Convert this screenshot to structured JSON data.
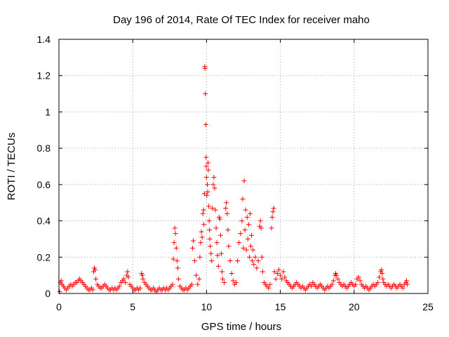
{
  "colors": {
    "background": "#ffffff",
    "series": "#ff0000",
    "grid": "#a0a0a0",
    "axes": "#000000"
  },
  "chart_data": {
    "type": "scatter",
    "title": "Day 196 of 2014, Rate Of TEC Index for receiver maho",
    "xlabel": "GPS time / hours",
    "ylabel": "ROTI / TECUs",
    "xlim": [
      0,
      25
    ],
    "ylim": [
      0,
      1.4
    ],
    "xticks": [
      0,
      5,
      10,
      15,
      20,
      25
    ],
    "yticks": [
      0,
      0.2,
      0.4,
      0.6,
      0.8,
      1,
      1.2,
      1.4
    ],
    "xtick_labels": [
      "0",
      "5",
      "10",
      "15",
      "20",
      "25"
    ],
    "ytick_labels": [
      "0",
      "0.2",
      "0.4",
      "0.6",
      "0.8",
      "1",
      "1.2",
      "1.4"
    ],
    "grid": true,
    "marker": "plus",
    "series": [
      {
        "name": "ROTI",
        "color": "#ff0000",
        "points": [
          [
            0.05,
            0.01
          ],
          [
            0.1,
            0.06
          ],
          [
            0.15,
            0.07
          ],
          [
            0.2,
            0.05
          ],
          [
            0.3,
            0.04
          ],
          [
            0.4,
            0.03
          ],
          [
            0.5,
            0.02
          ],
          [
            0.6,
            0.03
          ],
          [
            0.7,
            0.04
          ],
          [
            0.8,
            0.05
          ],
          [
            0.9,
            0.04
          ],
          [
            1.0,
            0.05
          ],
          [
            1.1,
            0.06
          ],
          [
            1.2,
            0.06
          ],
          [
            1.3,
            0.07
          ],
          [
            1.4,
            0.08
          ],
          [
            1.5,
            0.07
          ],
          [
            1.6,
            0.06
          ],
          [
            1.7,
            0.05
          ],
          [
            1.8,
            0.04
          ],
          [
            1.9,
            0.03
          ],
          [
            2.0,
            0.02
          ],
          [
            2.1,
            0.02
          ],
          [
            2.2,
            0.03
          ],
          [
            2.3,
            0.02
          ],
          [
            2.35,
            0.12
          ],
          [
            2.4,
            0.14
          ],
          [
            2.45,
            0.13
          ],
          [
            2.5,
            0.08
          ],
          [
            2.6,
            0.05
          ],
          [
            2.7,
            0.04
          ],
          [
            2.8,
            0.03
          ],
          [
            2.9,
            0.03
          ],
          [
            3.0,
            0.04
          ],
          [
            3.1,
            0.05
          ],
          [
            3.2,
            0.04
          ],
          [
            3.3,
            0.03
          ],
          [
            3.4,
            0.02
          ],
          [
            3.5,
            0.02
          ],
          [
            3.6,
            0.03
          ],
          [
            3.7,
            0.02
          ],
          [
            3.8,
            0.03
          ],
          [
            3.9,
            0.02
          ],
          [
            4.0,
            0.03
          ],
          [
            4.1,
            0.04
          ],
          [
            4.2,
            0.06
          ],
          [
            4.3,
            0.07
          ],
          [
            4.4,
            0.08
          ],
          [
            4.5,
            0.06
          ],
          [
            4.6,
            0.1
          ],
          [
            4.65,
            0.12
          ],
          [
            4.7,
            0.09
          ],
          [
            4.8,
            0.05
          ],
          [
            4.9,
            0.04
          ],
          [
            5.0,
            0.03
          ],
          [
            5.1,
            0.02
          ],
          [
            5.2,
            0.02
          ],
          [
            5.3,
            0.03
          ],
          [
            5.4,
            0.02
          ],
          [
            5.5,
            0.03
          ],
          [
            5.6,
            0.11
          ],
          [
            5.65,
            0.1
          ],
          [
            5.7,
            0.08
          ],
          [
            5.8,
            0.06
          ],
          [
            5.9,
            0.05
          ],
          [
            6.0,
            0.04
          ],
          [
            6.1,
            0.03
          ],
          [
            6.2,
            0.02
          ],
          [
            6.3,
            0.02
          ],
          [
            6.4,
            0.03
          ],
          [
            6.5,
            0.02
          ],
          [
            6.6,
            0.01
          ],
          [
            6.7,
            0.02
          ],
          [
            6.8,
            0.03
          ],
          [
            6.9,
            0.02
          ],
          [
            7.0,
            0.02
          ],
          [
            7.1,
            0.03
          ],
          [
            7.2,
            0.02
          ],
          [
            7.3,
            0.03
          ],
          [
            7.4,
            0.02
          ],
          [
            7.5,
            0.03
          ],
          [
            7.6,
            0.04
          ],
          [
            7.7,
            0.05
          ],
          [
            7.75,
            0.19
          ],
          [
            7.8,
            0.28
          ],
          [
            7.85,
            0.36
          ],
          [
            7.9,
            0.33
          ],
          [
            7.95,
            0.25
          ],
          [
            8.0,
            0.18
          ],
          [
            8.05,
            0.14
          ],
          [
            8.1,
            0.08
          ],
          [
            8.2,
            0.04
          ],
          [
            8.3,
            0.03
          ],
          [
            8.4,
            0.02
          ],
          [
            8.5,
            0.02
          ],
          [
            8.6,
            0.03
          ],
          [
            8.7,
            0.02
          ],
          [
            8.8,
            0.03
          ],
          [
            8.9,
            0.04
          ],
          [
            9.0,
            0.05
          ],
          [
            9.05,
            0.25
          ],
          [
            9.1,
            0.29
          ],
          [
            9.2,
            0.18
          ],
          [
            9.3,
            0.1
          ],
          [
            9.4,
            0.05
          ],
          [
            9.5,
            0.08
          ],
          [
            9.55,
            0.2
          ],
          [
            9.6,
            0.28
          ],
          [
            9.65,
            0.34
          ],
          [
            9.7,
            0.31
          ],
          [
            9.75,
            0.44
          ],
          [
            9.8,
            0.46
          ],
          [
            9.82,
            0.38
          ],
          [
            9.85,
            0.55
          ],
          [
            9.88,
            1.25
          ],
          [
            9.9,
            1.24
          ],
          [
            9.92,
            1.1
          ],
          [
            9.95,
            0.93
          ],
          [
            9.97,
            0.75
          ],
          [
            9.98,
            0.7
          ],
          [
            10.0,
            0.64
          ],
          [
            10.02,
            0.54
          ],
          [
            10.05,
            0.6
          ],
          [
            10.08,
            0.56
          ],
          [
            10.1,
            0.72
          ],
          [
            10.12,
            0.68
          ],
          [
            10.15,
            0.48
          ],
          [
            10.18,
            0.4
          ],
          [
            10.2,
            0.35
          ],
          [
            10.22,
            0.3
          ],
          [
            10.25,
            0.26
          ],
          [
            10.3,
            0.22
          ],
          [
            10.35,
            0.18
          ],
          [
            10.4,
            0.47
          ],
          [
            10.45,
            0.6
          ],
          [
            10.5,
            0.64
          ],
          [
            10.55,
            0.58
          ],
          [
            10.6,
            0.46
          ],
          [
            10.65,
            0.36
          ],
          [
            10.7,
            0.28
          ],
          [
            10.75,
            0.21
          ],
          [
            10.8,
            0.15
          ],
          [
            10.85,
            0.42
          ],
          [
            10.9,
            0.41
          ],
          [
            10.95,
            0.32
          ],
          [
            11.0,
            0.22
          ],
          [
            11.05,
            0.12
          ],
          [
            11.1,
            0.08
          ],
          [
            11.2,
            0.06
          ],
          [
            11.3,
            0.47
          ],
          [
            11.35,
            0.5
          ],
          [
            11.4,
            0.44
          ],
          [
            11.45,
            0.35
          ],
          [
            11.5,
            0.26
          ],
          [
            11.6,
            0.18
          ],
          [
            11.7,
            0.11
          ],
          [
            11.8,
            0.07
          ],
          [
            11.9,
            0.05
          ],
          [
            12.0,
            0.06
          ],
          [
            12.1,
            0.18
          ],
          [
            12.2,
            0.28
          ],
          [
            12.3,
            0.33
          ],
          [
            12.4,
            0.4
          ],
          [
            12.45,
            0.52
          ],
          [
            12.5,
            0.25
          ],
          [
            12.55,
            0.62
          ],
          [
            12.6,
            0.35
          ],
          [
            12.65,
            0.46
          ],
          [
            12.7,
            0.24
          ],
          [
            12.75,
            0.42
          ],
          [
            12.8,
            0.3
          ],
          [
            12.85,
            0.38
          ],
          [
            12.9,
            0.2
          ],
          [
            12.95,
            0.44
          ],
          [
            13.0,
            0.26
          ],
          [
            13.05,
            0.32
          ],
          [
            13.1,
            0.18
          ],
          [
            13.15,
            0.24
          ],
          [
            13.2,
            0.16
          ],
          [
            13.3,
            0.2
          ],
          [
            13.4,
            0.14
          ],
          [
            13.5,
            0.18
          ],
          [
            13.6,
            0.37
          ],
          [
            13.65,
            0.4
          ],
          [
            13.7,
            0.36
          ],
          [
            13.75,
            0.2
          ],
          [
            13.8,
            0.12
          ],
          [
            13.9,
            0.06
          ],
          [
            14.0,
            0.05
          ],
          [
            14.1,
            0.04
          ],
          [
            14.2,
            0.03
          ],
          [
            14.3,
            0.05
          ],
          [
            14.4,
            0.36
          ],
          [
            14.45,
            0.42
          ],
          [
            14.5,
            0.45
          ],
          [
            14.55,
            0.47
          ],
          [
            14.6,
            0.12
          ],
          [
            14.7,
            0.08
          ],
          [
            14.8,
            0.11
          ],
          [
            14.9,
            0.13
          ],
          [
            15.0,
            0.1
          ],
          [
            15.1,
            0.08
          ],
          [
            15.2,
            0.12
          ],
          [
            15.3,
            0.09
          ],
          [
            15.4,
            0.07
          ],
          [
            15.5,
            0.06
          ],
          [
            15.6,
            0.05
          ],
          [
            15.7,
            0.04
          ],
          [
            15.8,
            0.03
          ],
          [
            15.9,
            0.04
          ],
          [
            16.0,
            0.05
          ],
          [
            16.1,
            0.06
          ],
          [
            16.2,
            0.05
          ],
          [
            16.3,
            0.04
          ],
          [
            16.4,
            0.03
          ],
          [
            16.5,
            0.04
          ],
          [
            16.6,
            0.03
          ],
          [
            16.7,
            0.02
          ],
          [
            16.8,
            0.03
          ],
          [
            16.9,
            0.04
          ],
          [
            17.0,
            0.05
          ],
          [
            17.1,
            0.04
          ],
          [
            17.2,
            0.06
          ],
          [
            17.3,
            0.05
          ],
          [
            17.4,
            0.04
          ],
          [
            17.5,
            0.03
          ],
          [
            17.6,
            0.04
          ],
          [
            17.7,
            0.05
          ],
          [
            17.8,
            0.04
          ],
          [
            17.9,
            0.03
          ],
          [
            18.0,
            0.02
          ],
          [
            18.1,
            0.03
          ],
          [
            18.2,
            0.04
          ],
          [
            18.3,
            0.03
          ],
          [
            18.4,
            0.04
          ],
          [
            18.5,
            0.05
          ],
          [
            18.6,
            0.07
          ],
          [
            18.7,
            0.1
          ],
          [
            18.75,
            0.11
          ],
          [
            18.8,
            0.1
          ],
          [
            18.9,
            0.08
          ],
          [
            19.0,
            0.06
          ],
          [
            19.1,
            0.05
          ],
          [
            19.2,
            0.04
          ],
          [
            19.3,
            0.05
          ],
          [
            19.4,
            0.04
          ],
          [
            19.5,
            0.03
          ],
          [
            19.6,
            0.04
          ],
          [
            19.7,
            0.05
          ],
          [
            19.8,
            0.06
          ],
          [
            19.9,
            0.05
          ],
          [
            20.0,
            0.04
          ],
          [
            20.1,
            0.05
          ],
          [
            20.2,
            0.08
          ],
          [
            20.3,
            0.09
          ],
          [
            20.4,
            0.07
          ],
          [
            20.5,
            0.05
          ],
          [
            20.6,
            0.04
          ],
          [
            20.7,
            0.03
          ],
          [
            20.8,
            0.04
          ],
          [
            20.9,
            0.03
          ],
          [
            21.0,
            0.02
          ],
          [
            21.1,
            0.03
          ],
          [
            21.2,
            0.04
          ],
          [
            21.3,
            0.05
          ],
          [
            21.4,
            0.04
          ],
          [
            21.5,
            0.05
          ],
          [
            21.6,
            0.06
          ],
          [
            21.7,
            0.09
          ],
          [
            21.8,
            0.12
          ],
          [
            21.85,
            0.13
          ],
          [
            21.9,
            0.11
          ],
          [
            21.95,
            0.08
          ],
          [
            22.0,
            0.06
          ],
          [
            22.1,
            0.05
          ],
          [
            22.2,
            0.04
          ],
          [
            22.3,
            0.05
          ],
          [
            22.4,
            0.04
          ],
          [
            22.5,
            0.03
          ],
          [
            22.6,
            0.04
          ],
          [
            22.7,
            0.05
          ],
          [
            22.8,
            0.04
          ],
          [
            22.9,
            0.03
          ],
          [
            23.0,
            0.04
          ],
          [
            23.1,
            0.05
          ],
          [
            23.2,
            0.04
          ],
          [
            23.3,
            0.03
          ],
          [
            23.4,
            0.05
          ],
          [
            23.5,
            0.06
          ],
          [
            23.55,
            0.07
          ],
          [
            23.6,
            0.05
          ]
        ]
      }
    ]
  }
}
